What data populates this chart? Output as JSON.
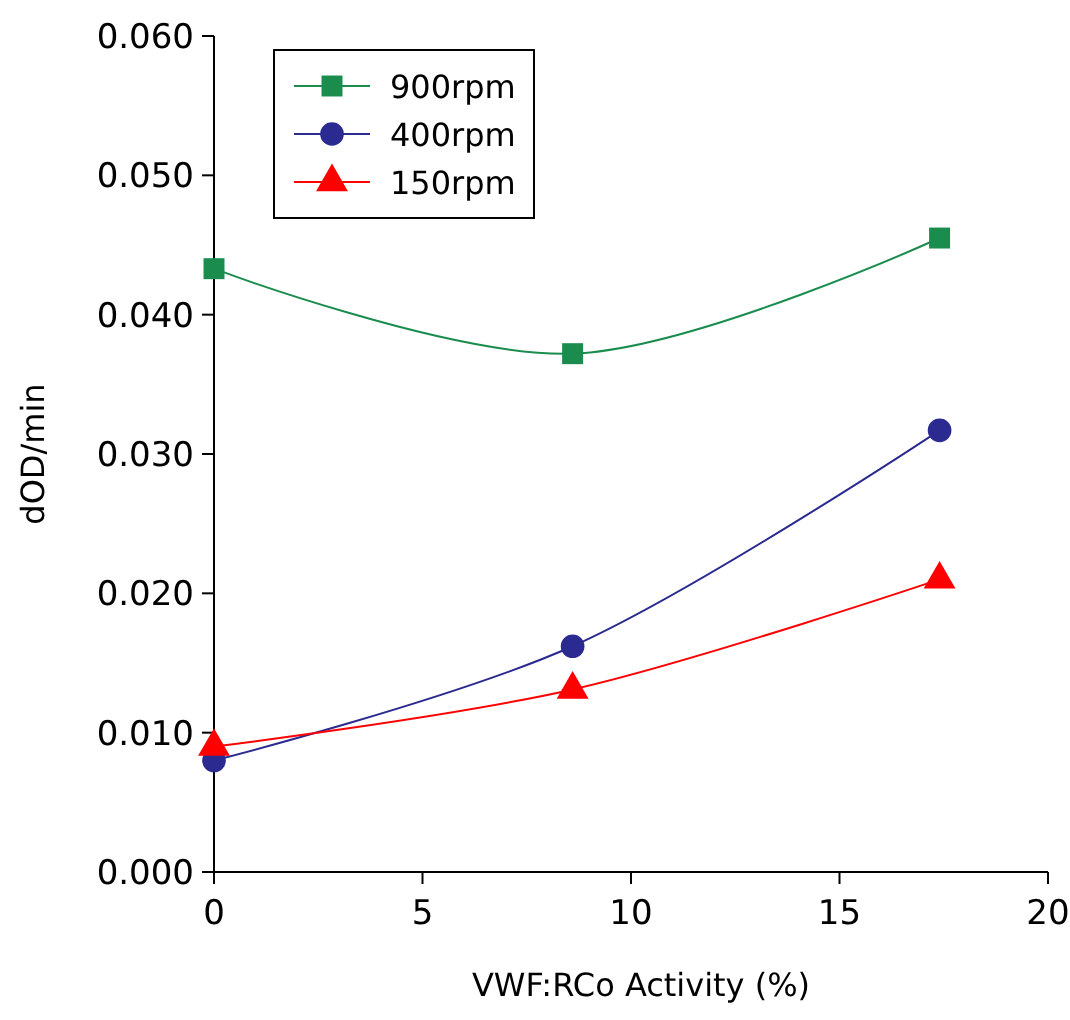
{
  "chart_data": {
    "type": "line",
    "xlabel": "VWF:RCo Activity (%)",
    "ylabel": "dOD/min",
    "x": [
      0,
      8.6,
      17.4
    ],
    "series": [
      {
        "name": "900rpm",
        "color": "#1a8c4e",
        "marker": "square",
        "values": [
          0.0433,
          0.0372,
          0.0455
        ]
      },
      {
        "name": "400rpm",
        "color": "#2a2a90",
        "marker": "circle",
        "values": [
          0.008,
          0.0162,
          0.0317
        ]
      },
      {
        "name": "150rpm",
        "color": "#ff0000",
        "marker": "triangle",
        "values": [
          0.009,
          0.0131,
          0.021
        ]
      }
    ],
    "xlim": [
      0,
      20
    ],
    "xticks": [
      0,
      5,
      10,
      15,
      20
    ],
    "ylim": [
      0,
      0.06
    ],
    "yticks": [
      {
        "value": 0,
        "label": "0.000"
      },
      {
        "value": 0.01,
        "label": "0.010"
      },
      {
        "value": 0.02,
        "label": "0.020"
      },
      {
        "value": 0.03,
        "label": "0.030"
      },
      {
        "value": 0.04,
        "label": "0.040"
      },
      {
        "value": 0.05,
        "label": "0.050"
      },
      {
        "value": 0.06,
        "label": "0.060"
      }
    ],
    "grid": false,
    "legend": "top left"
  }
}
